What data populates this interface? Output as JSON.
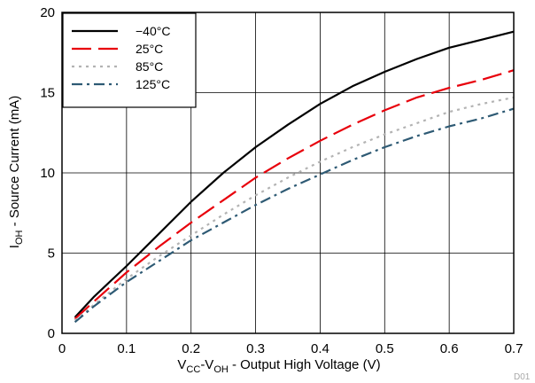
{
  "chart_data": {
    "type": "line",
    "title": "",
    "xlabel": {
      "main": "V",
      "sub1": "CC",
      "mid": "-V",
      "sub2": "OH",
      "rest": " - Output High Voltage (V)"
    },
    "ylabel": {
      "main": "I",
      "sub": "OH",
      "rest": " - Source Current (mA)"
    },
    "xlim": [
      0,
      0.7
    ],
    "ylim": [
      0,
      20
    ],
    "xticks": [
      0,
      0.1,
      0.2,
      0.3,
      0.4,
      0.5,
      0.6,
      0.7
    ],
    "xtick_labels": [
      "0",
      "0.1",
      "0.2",
      "0.3",
      "0.4",
      "0.5",
      "0.6",
      "0.7"
    ],
    "yticks": [
      0,
      5,
      10,
      15,
      20
    ],
    "ytick_labels": [
      "0",
      "5",
      "10",
      "15",
      "20"
    ],
    "grid": true,
    "legend_position": "top-left",
    "corner_label": "D01",
    "series": [
      {
        "name": "−40°C",
        "color": "#000000",
        "dash": "solid",
        "x": [
          0.02,
          0.05,
          0.1,
          0.15,
          0.2,
          0.25,
          0.3,
          0.35,
          0.4,
          0.45,
          0.5,
          0.55,
          0.6,
          0.65,
          0.7
        ],
        "y": [
          1.0,
          2.3,
          4.2,
          6.2,
          8.2,
          10.0,
          11.6,
          13.0,
          14.3,
          15.4,
          16.3,
          17.1,
          17.8,
          18.3,
          18.8
        ]
      },
      {
        "name": "25°C",
        "color": "#e8000b",
        "dash": "longdash",
        "x": [
          0.02,
          0.05,
          0.1,
          0.15,
          0.2,
          0.25,
          0.3,
          0.35,
          0.4,
          0.45,
          0.5,
          0.55,
          0.6,
          0.65,
          0.7
        ],
        "y": [
          0.9,
          2.0,
          3.8,
          5.4,
          6.9,
          8.3,
          9.7,
          10.9,
          12.0,
          13.0,
          13.9,
          14.7,
          15.3,
          15.8,
          16.4
        ]
      },
      {
        "name": "85°C",
        "color": "#b3b3b3",
        "dash": "dot",
        "x": [
          0.02,
          0.05,
          0.1,
          0.15,
          0.2,
          0.25,
          0.3,
          0.35,
          0.4,
          0.45,
          0.5,
          0.55,
          0.6,
          0.65,
          0.7
        ],
        "y": [
          0.8,
          1.8,
          3.4,
          4.8,
          6.1,
          7.4,
          8.6,
          9.7,
          10.7,
          11.6,
          12.4,
          13.1,
          13.8,
          14.3,
          14.7
        ]
      },
      {
        "name": "125°C",
        "color": "#2e5a74",
        "dash": "dashdot",
        "x": [
          0.02,
          0.05,
          0.1,
          0.15,
          0.2,
          0.25,
          0.3,
          0.35,
          0.4,
          0.45,
          0.5,
          0.55,
          0.6,
          0.65,
          0.7
        ],
        "y": [
          0.7,
          1.7,
          3.2,
          4.5,
          5.8,
          6.9,
          8.0,
          9.0,
          9.9,
          10.8,
          11.6,
          12.3,
          12.9,
          13.4,
          14.0
        ]
      }
    ]
  }
}
